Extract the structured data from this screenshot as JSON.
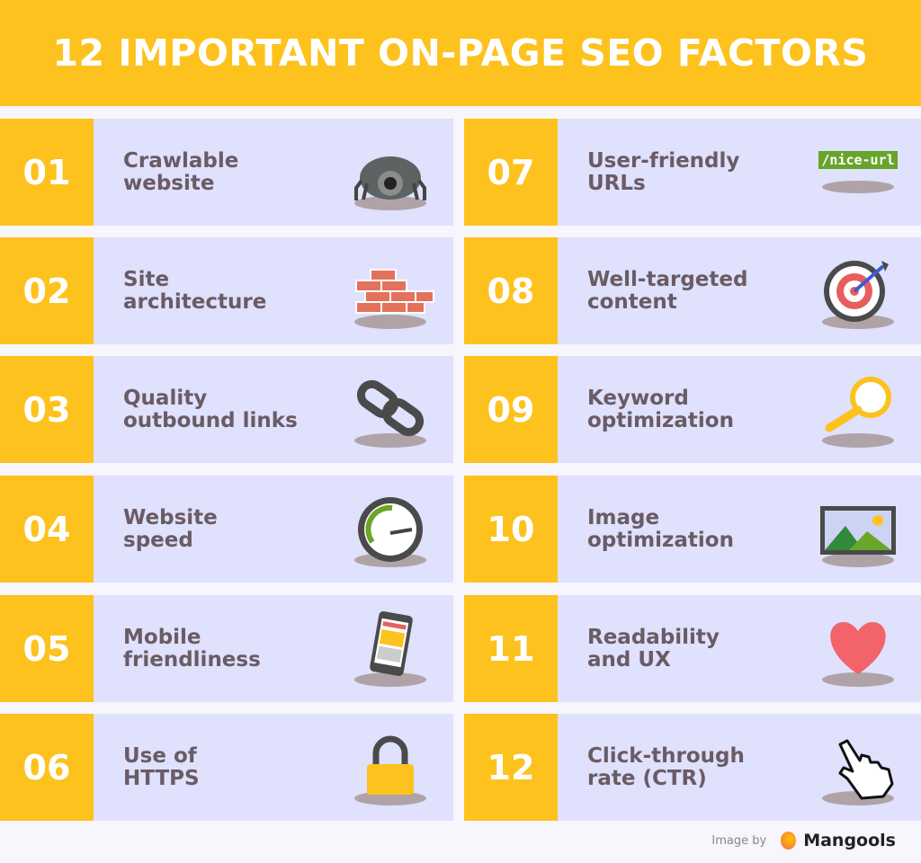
{
  "title": "12 IMPORTANT ON-PAGE SEO FACTORS",
  "colors": {
    "accent": "#fdc21e",
    "card": "#dfe1fd",
    "text": "#6a5b64",
    "background": "#f6f6fc"
  },
  "factors": [
    {
      "number": "01",
      "label": "Crawlable\nwebsite",
      "icon": "spider-icon"
    },
    {
      "number": "02",
      "label": "Site\narchitecture",
      "icon": "bricks-icon"
    },
    {
      "number": "03",
      "label": "Quality\noutbound links",
      "icon": "chain-link-icon"
    },
    {
      "number": "04",
      "label": "Website\nspeed",
      "icon": "speedometer-icon"
    },
    {
      "number": "05",
      "label": "Mobile\nfriendliness",
      "icon": "smartphone-icon"
    },
    {
      "number": "06",
      "label": "Use of\nHTTPS",
      "icon": "padlock-icon"
    },
    {
      "number": "07",
      "label": "User-friendly\nURLs",
      "icon": "url-tag-icon",
      "icon_text": "/nice-url"
    },
    {
      "number": "08",
      "label": "Well-targeted\ncontent",
      "icon": "target-icon"
    },
    {
      "number": "09",
      "label": "Keyword\noptimization",
      "icon": "magnifier-icon"
    },
    {
      "number": "10",
      "label": "Image\noptimization",
      "icon": "image-icon"
    },
    {
      "number": "11",
      "label": "Readability\nand UX",
      "icon": "heart-icon"
    },
    {
      "number": "12",
      "label": "Click-through\nrate (CTR)",
      "icon": "pointer-hand-icon"
    }
  ],
  "footer": {
    "credit": "Image by",
    "brand": "Mangools"
  }
}
